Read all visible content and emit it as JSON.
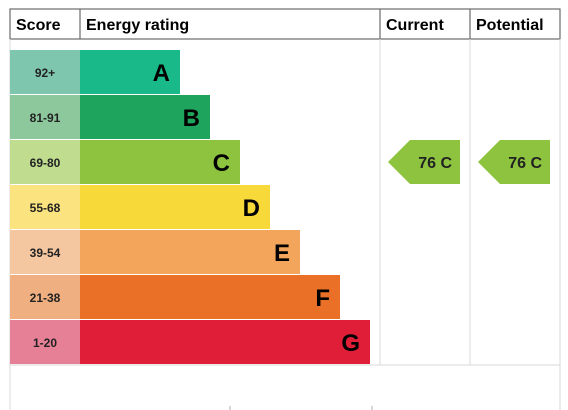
{
  "header": {
    "score": "Score",
    "energy_rating": "Energy rating",
    "current": "Current",
    "potential": "Potential"
  },
  "chart_data": {
    "type": "bar",
    "title": "",
    "categories": [
      "92+",
      "81-91",
      "69-80",
      "55-68",
      "39-54",
      "21-38",
      "1-20"
    ],
    "letters": [
      "A",
      "B",
      "C",
      "D",
      "E",
      "F",
      "G"
    ],
    "bar_colors": [
      "#19b98a",
      "#1fa45e",
      "#8dc33e",
      "#f7d93a",
      "#f2a55b",
      "#ea7027",
      "#e01e37"
    ],
    "score_colors": [
      "#7fc6ae",
      "#8dc89c",
      "#bfdc8f",
      "#fbe47f",
      "#f5c7a1",
      "#efaf80",
      "#e58097"
    ],
    "letter_colors": [
      "#000000",
      "#000000",
      "#000000",
      "#000000",
      "#000000",
      "#000000",
      "#000000"
    ],
    "current": {
      "value": 76,
      "band": "C",
      "label": "76 C",
      "color": "#8dc33e"
    },
    "potential": {
      "value": 76,
      "band": "C",
      "label": "76 C",
      "color": "#8dc33e"
    }
  }
}
